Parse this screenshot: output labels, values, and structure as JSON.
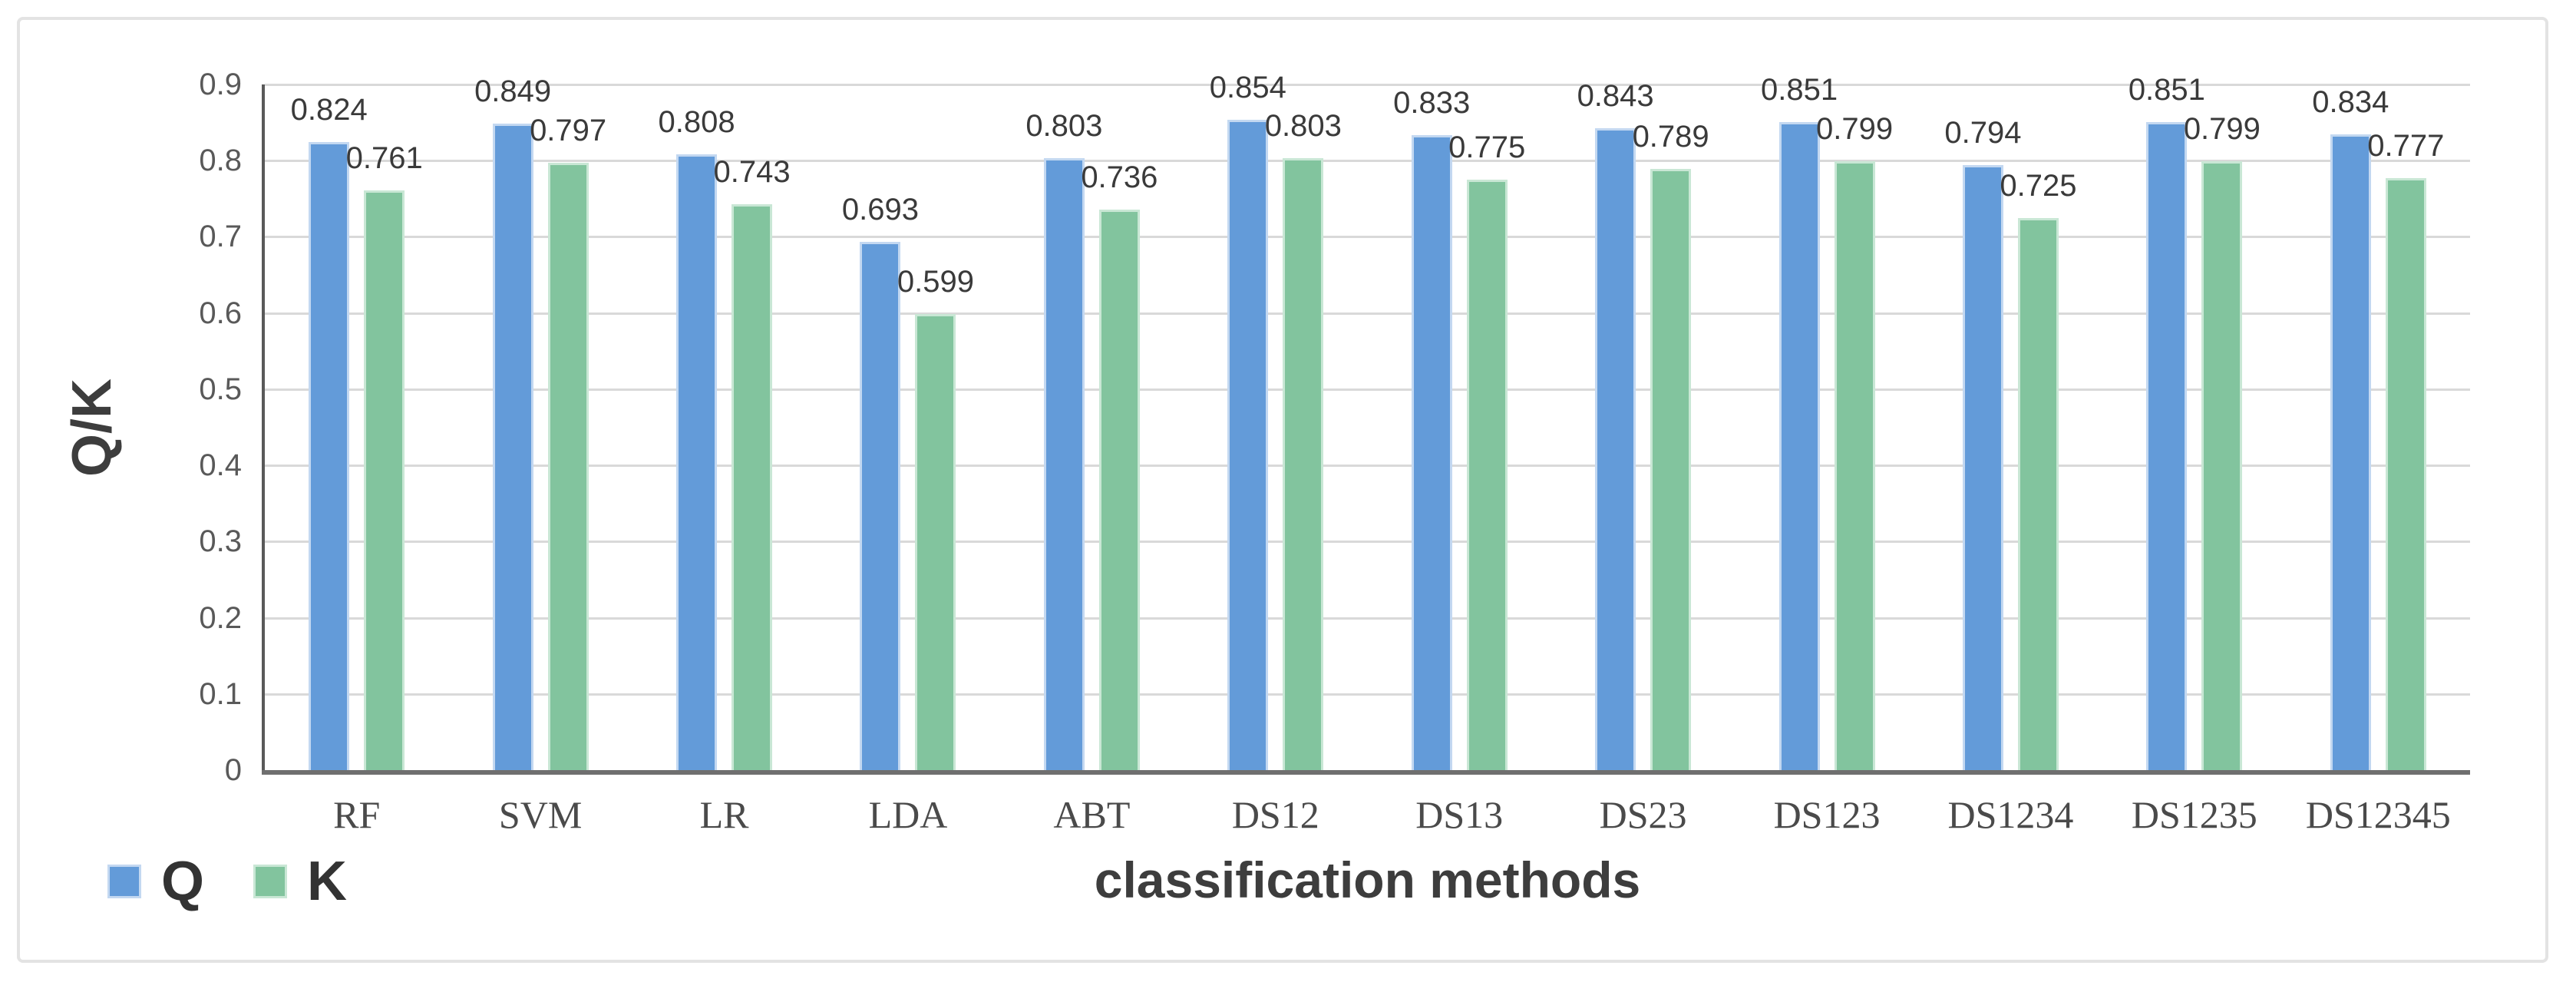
{
  "figure": {
    "background": "#ffffff",
    "border_color": "#e3e3e3"
  },
  "chart_data": {
    "type": "bar",
    "title": "",
    "categories": [
      "RF",
      "SVM",
      "LR",
      "LDA",
      "ABT",
      "DS12",
      "DS13",
      "DS23",
      "DS123",
      "DS1234",
      "DS1235",
      "DS12345"
    ],
    "series": [
      {
        "name": "Q",
        "color": "#639BD9",
        "edge_color": "#c3d8f1",
        "values": [
          0.824,
          0.849,
          0.808,
          0.693,
          0.803,
          0.854,
          0.833,
          0.843,
          0.851,
          0.794,
          0.851,
          0.834
        ]
      },
      {
        "name": "K",
        "color": "#82C49E",
        "edge_color": "#c9e7d5",
        "values": [
          0.761,
          0.797,
          0.743,
          0.599,
          0.736,
          0.803,
          0.775,
          0.789,
          0.799,
          0.725,
          0.799,
          0.777
        ]
      }
    ],
    "xlabel": "classification methods",
    "ylabel": "Q/K",
    "yticks": [
      "0",
      "0.1",
      "0.2",
      "0.3",
      "0.4",
      "0.5",
      "0.6",
      "0.7",
      "0.8",
      "0.9"
    ],
    "ylim": [
      0,
      0.9
    ],
    "grid": true,
    "legend_position": "bottom-left",
    "gridline_color": "#d9d9d9",
    "y_axis_color": "#595959",
    "x_axis_color": "#6f6f6f",
    "tick_label_color": "#595959",
    "value_label_color": "#3a3a3a"
  }
}
